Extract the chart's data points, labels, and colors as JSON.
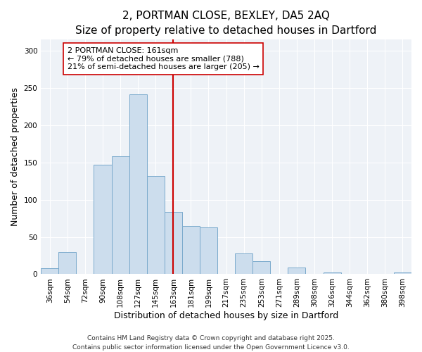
{
  "title": "2, PORTMAN CLOSE, BEXLEY, DA5 2AQ",
  "subtitle": "Size of property relative to detached houses in Dartford",
  "xlabel": "Distribution of detached houses by size in Dartford",
  "ylabel": "Number of detached properties",
  "bar_labels": [
    "36sqm",
    "54sqm",
    "72sqm",
    "90sqm",
    "108sqm",
    "127sqm",
    "145sqm",
    "163sqm",
    "181sqm",
    "199sqm",
    "217sqm",
    "235sqm",
    "253sqm",
    "271sqm",
    "289sqm",
    "308sqm",
    "326sqm",
    "344sqm",
    "362sqm",
    "380sqm",
    "398sqm"
  ],
  "bar_heights": [
    8,
    30,
    0,
    147,
    158,
    242,
    132,
    84,
    65,
    63,
    0,
    28,
    17,
    0,
    9,
    0,
    2,
    0,
    0,
    0,
    2
  ],
  "bar_color": "#ccdded",
  "bar_edge_color": "#7aaacc",
  "vline_color": "#cc0000",
  "annotation_text": "2 PORTMAN CLOSE: 161sqm\n← 79% of detached houses are smaller (788)\n21% of semi-detached houses are larger (205) →",
  "annotation_box_facecolor": "#ffffff",
  "annotation_box_edge": "#cc0000",
  "ylim": [
    0,
    315
  ],
  "yticks": [
    0,
    50,
    100,
    150,
    200,
    250,
    300
  ],
  "footer1": "Contains HM Land Registry data © Crown copyright and database right 2025.",
  "footer2": "Contains public sector information licensed under the Open Government Licence v3.0.",
  "bg_color": "#ffffff",
  "plot_bg_color": "#eef2f7",
  "grid_color": "#ffffff",
  "title_fontsize": 11,
  "subtitle_fontsize": 9.5,
  "axis_label_fontsize": 9,
  "tick_fontsize": 7.5,
  "annotation_fontsize": 8,
  "footer_fontsize": 6.5,
  "vline_x_index": 7
}
